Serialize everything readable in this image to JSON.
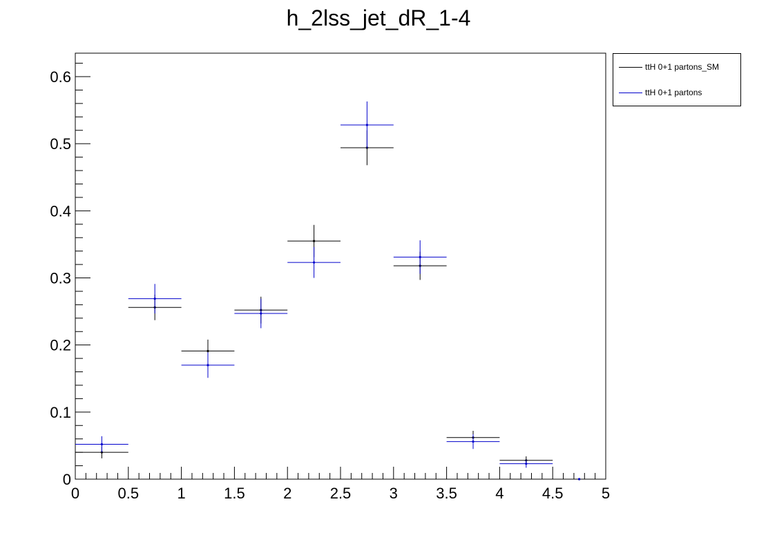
{
  "chart_data": {
    "type": "scatter",
    "title": "h_2lss_jet_dR_1-4",
    "xlabel": "",
    "ylabel": "",
    "xlim": [
      0,
      5
    ],
    "ylim": [
      0,
      0.635
    ],
    "x_ticks": [
      "0",
      "0.5",
      "1",
      "1.5",
      "2",
      "2.5",
      "3",
      "3.5",
      "4",
      "4.5",
      "5"
    ],
    "y_ticks": [
      "0",
      "0.1",
      "0.2",
      "0.3",
      "0.4",
      "0.5",
      "0.6"
    ],
    "bin_edges": [
      0,
      0.5,
      1,
      1.5,
      2,
      2.5,
      3,
      3.5,
      4,
      4.5,
      5
    ],
    "x": [
      0.25,
      0.75,
      1.25,
      1.75,
      2.25,
      2.75,
      3.25,
      3.75,
      4.25,
      4.75
    ],
    "grid": false,
    "legend_position": "top-right, outside plot",
    "series": [
      {
        "name": "ttH 0+1 partons_SM",
        "color": "#000000",
        "values": [
          0.04,
          0.256,
          0.191,
          0.252,
          0.355,
          0.494,
          0.318,
          0.062,
          0.028,
          0.0
        ],
        "errors": [
          0.009,
          0.019,
          0.017,
          0.02,
          0.024,
          0.026,
          0.021,
          0.01,
          0.006,
          0.0
        ]
      },
      {
        "name": "ttH 0+1 partons",
        "color": "#0000cc",
        "values": [
          0.052,
          0.269,
          0.17,
          0.247,
          0.323,
          0.528,
          0.331,
          0.056,
          0.023,
          0.0
        ],
        "errors": [
          0.012,
          0.022,
          0.019,
          0.022,
          0.023,
          0.035,
          0.025,
          0.011,
          0.006,
          0.0
        ]
      }
    ]
  }
}
